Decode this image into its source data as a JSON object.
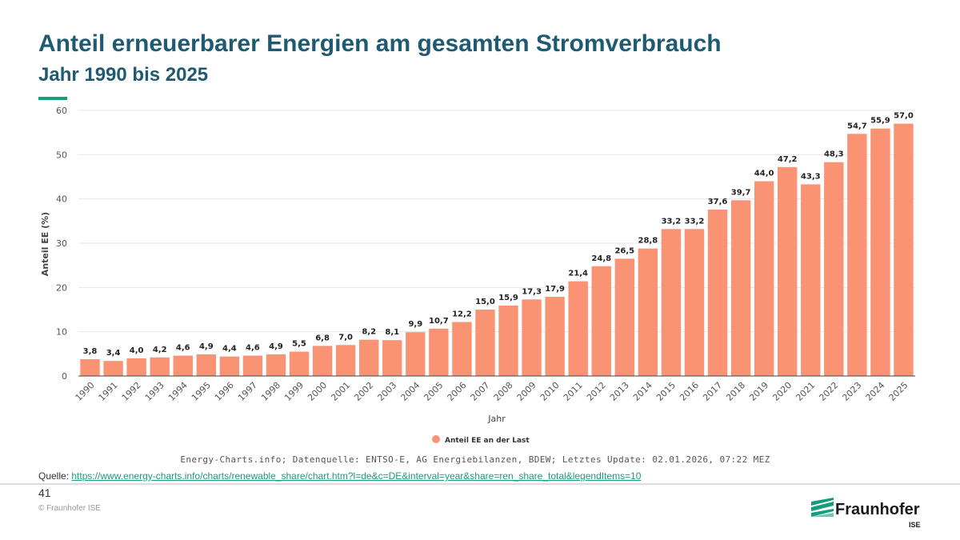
{
  "slide": {
    "title": "Anteil erneuerbarer Energien am gesamten Stromverbrauch",
    "subtitle": "Jahr 1990 bis 2025",
    "page_number": "41",
    "copyright": "© Fraunhofer ISE",
    "source_label": "Quelle:",
    "source_url": "https://www.energy-charts.info/charts/renewable_share/chart.htm?l=de&c=DE&interval=year&share=ren_share_total&legendItems=10",
    "logo_name": "Fraunhofer",
    "logo_sub": "ISE",
    "accent_color": "#179c7d",
    "title_color": "#1f5a73"
  },
  "chart_data": {
    "type": "bar",
    "categories": [
      "1990",
      "1991",
      "1992",
      "1993",
      "1994",
      "1995",
      "1996",
      "1997",
      "1998",
      "1999",
      "2000",
      "2001",
      "2002",
      "2003",
      "2004",
      "2005",
      "2006",
      "2007",
      "2008",
      "2009",
      "2010",
      "2011",
      "2012",
      "2013",
      "2014",
      "2015",
      "2016",
      "2017",
      "2018",
      "2019",
      "2020",
      "2021",
      "2022",
      "2023",
      "2024",
      "2025"
    ],
    "series": [
      {
        "name": "Anteil EE an der Last",
        "color": "#fa9373",
        "values": [
          3.8,
          3.4,
          4.0,
          4.2,
          4.6,
          4.9,
          4.4,
          4.6,
          4.9,
          5.5,
          6.8,
          7.0,
          8.2,
          8.1,
          9.9,
          10.7,
          12.2,
          15.0,
          15.9,
          17.3,
          17.9,
          21.4,
          24.8,
          26.5,
          28.8,
          33.2,
          33.2,
          37.6,
          39.7,
          44.0,
          47.2,
          43.3,
          48.3,
          54.7,
          55.9,
          57.0
        ],
        "labels": [
          "3,8",
          "3,4",
          "4,0",
          "4,2",
          "4,6",
          "4,9",
          "4,4",
          "4,6",
          "4,9",
          "5,5",
          "6,8",
          "7,0",
          "8,2",
          "8,1",
          "9,9",
          "10,7",
          "12,2",
          "15,0",
          "15,9",
          "17,3",
          "17,9",
          "21,4",
          "24,8",
          "26,5",
          "28,8",
          "33,2",
          "33,2",
          "37,6",
          "39,7",
          "44,0",
          "47,2",
          "43,3",
          "48,3",
          "54,7",
          "55,9",
          "57,0"
        ]
      }
    ],
    "xlabel": "Jahr",
    "ylabel": "Anteil EE (%)",
    "ylim": [
      0,
      60
    ],
    "yticks": [
      "0",
      "10",
      "20",
      "30",
      "40",
      "50",
      "60"
    ],
    "grid": true,
    "legend_position": "bottom-center",
    "caption": "Energy-Charts.info; Datenquelle: ENTSO-E, AG Energiebilanzen, BDEW; Letztes Update: 02.01.2026, 07:22 MEZ"
  }
}
